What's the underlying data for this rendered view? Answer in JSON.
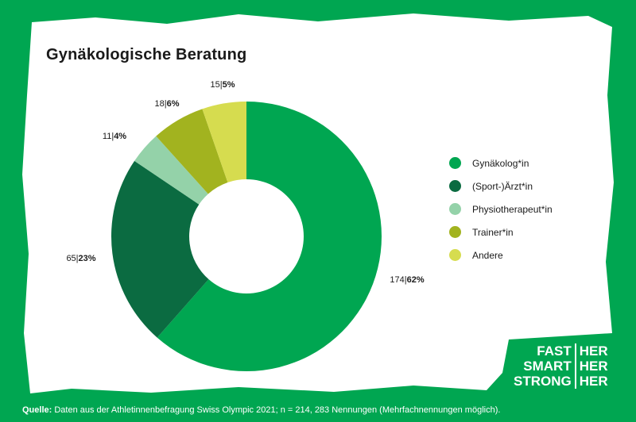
{
  "title": "Gynäkologische Beratung",
  "colors": {
    "background": "#00a651",
    "paper": "#ffffff",
    "series": [
      "#00a651",
      "#0b6b41",
      "#94d2a9",
      "#a2b31f",
      "#d6dc4f"
    ]
  },
  "chart_data": {
    "type": "pie",
    "donut": true,
    "title": "Gynäkologische Beratung",
    "categories": [
      "Gynäkolog*in",
      "(Sport-)Ärzt*in",
      "Physiotherapeut*in",
      "Trainer*in",
      "Andere"
    ],
    "counts": [
      174,
      65,
      11,
      18,
      15
    ],
    "percents": [
      "62%",
      "23%",
      "4%",
      "6%",
      "5%"
    ],
    "labels": [
      {
        "count": "174",
        "percent": "62%"
      },
      {
        "count": "65",
        "percent": "23%"
      },
      {
        "count": "11",
        "percent": "4%"
      },
      {
        "count": "18",
        "percent": "6%"
      },
      {
        "count": "15",
        "percent": "5%"
      }
    ],
    "legend_position": "right"
  },
  "source": {
    "label": "Quelle:",
    "text": "Daten aus der Athletinnenbefragung Swiss Olympic 2021; n = 214, 283 Nennungen (Mehrfachnennungen möglich)."
  },
  "logo": {
    "left": [
      "FAST",
      "SMART",
      "STRONG"
    ],
    "right": [
      "HER",
      "HER",
      "HER"
    ]
  }
}
